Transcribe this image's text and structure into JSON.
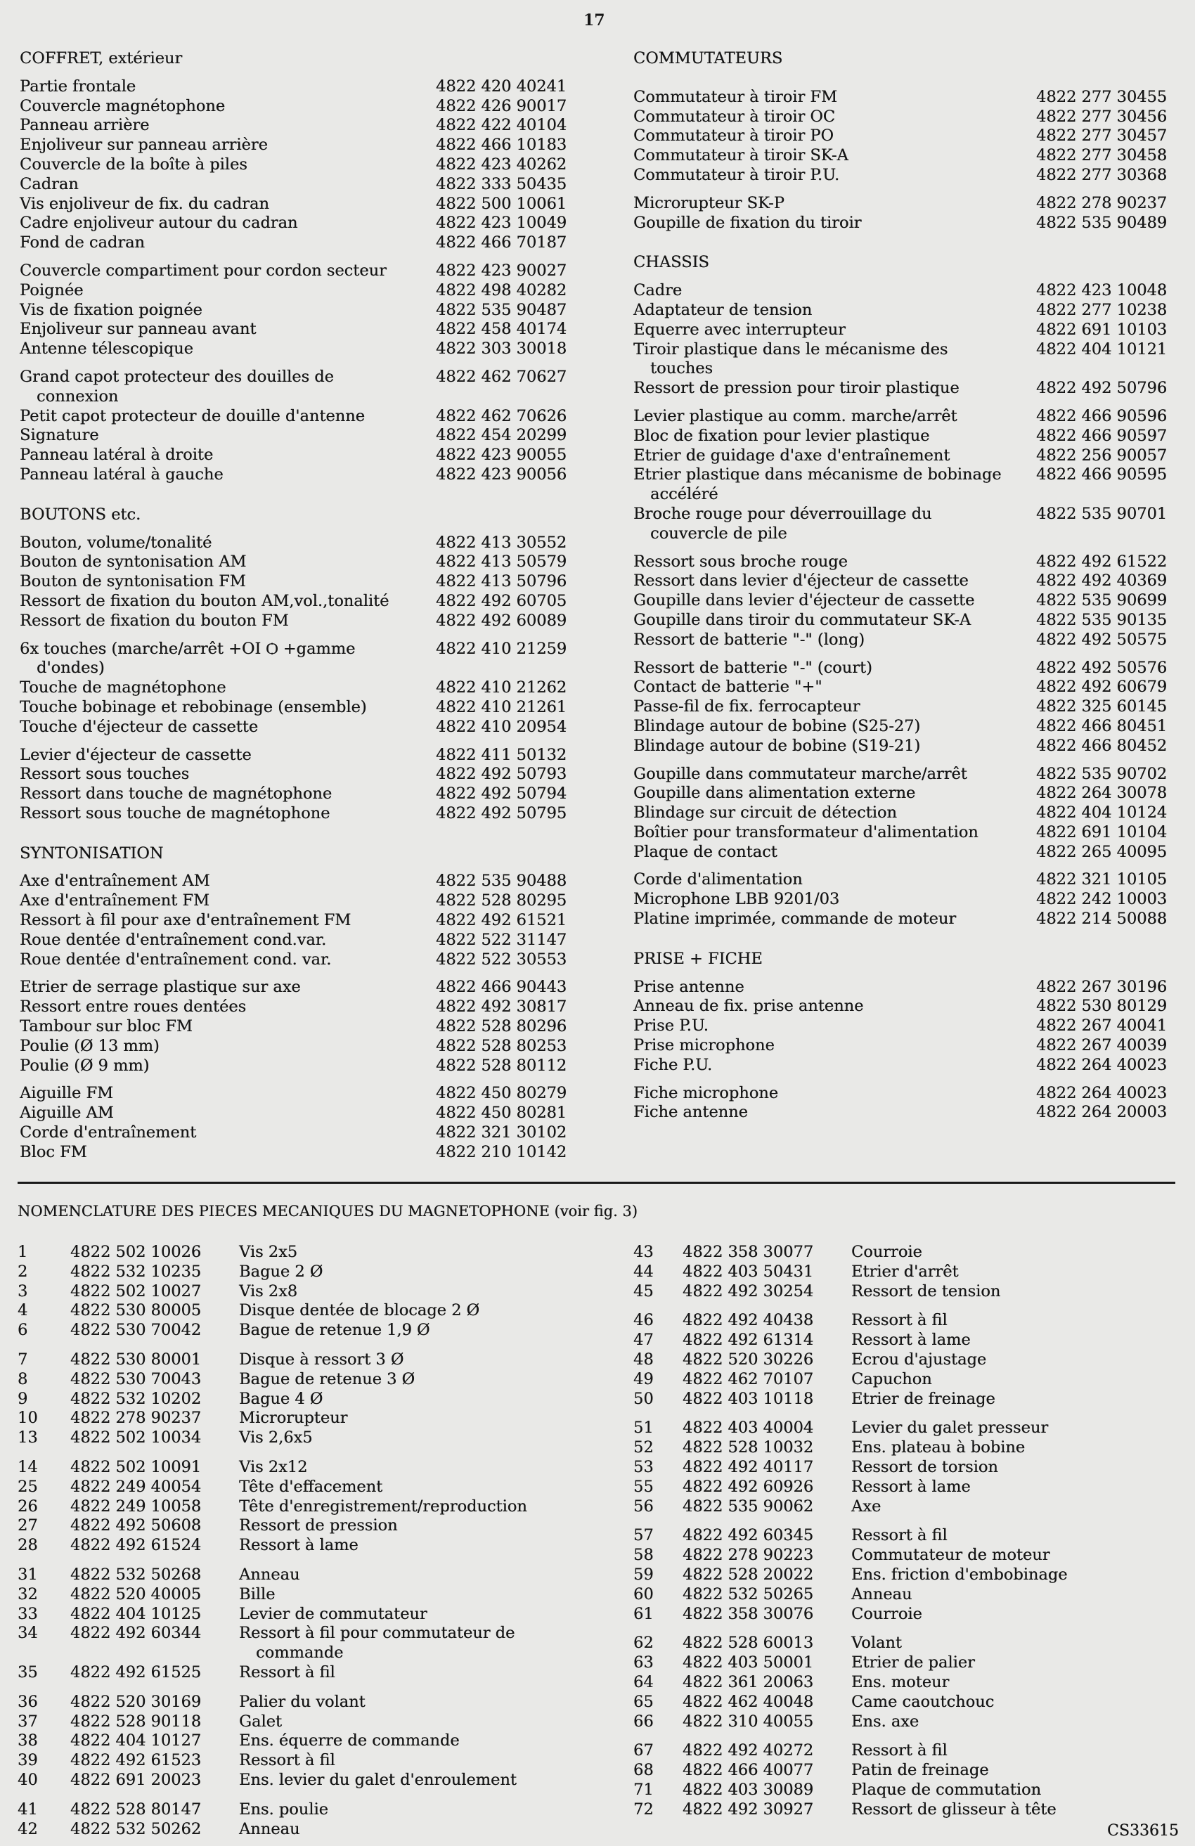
{
  "page_number": "17",
  "parts_lists": {
    "left": [
      {
        "title": "COFFRET, extérieur",
        "groups": [
          {
            "items": [
              {
                "desc": "Partie frontale",
                "part": "4822 420 40241"
              },
              {
                "desc": "Couvercle magnétophone",
                "part": "4822 426 90017"
              },
              {
                "desc": "Panneau arrière",
                "part": "4822 422 40104"
              },
              {
                "desc": "Enjoliveur sur panneau arrière",
                "part": "4822 466 10183"
              },
              {
                "desc": "Couvercle de la boîte à piles",
                "part": "4822 423 40262"
              },
              {
                "desc": "Cadran",
                "part": "4822 333 50435"
              },
              {
                "desc": "Vis enjoliveur de fix. du cadran",
                "part": "4822 500 10061"
              },
              {
                "desc": "Cadre enjoliveur autour du cadran",
                "part": "4822 423 10049"
              },
              {
                "desc": "Fond de cadran",
                "part": "4822 466 70187"
              }
            ]
          },
          {
            "items": [
              {
                "desc": "Couvercle compartiment pour cordon secteur",
                "part": "4822 423 90027"
              },
              {
                "desc": "Poignée",
                "part": "4822 498 40282"
              },
              {
                "desc": "Vis de fixation poignée",
                "part": "4822 535 90487"
              },
              {
                "desc": "Enjoliveur sur panneau avant",
                "part": "4822 458 40174"
              },
              {
                "desc": "Antenne télescopique",
                "part": "4822 303 30018"
              }
            ]
          },
          {
            "items": [
              {
                "desc": "Grand capot protecteur des douilles de\nconnexion",
                "part": "4822 462 70627"
              },
              {
                "desc": "Petit capot protecteur de douille d'antenne",
                "part": "4822 462 70626"
              },
              {
                "desc": "Signature",
                "part": "4822 454 20299"
              },
              {
                "desc": "Panneau latéral à droite",
                "part": "4822 423 90055"
              },
              {
                "desc": "Panneau latéral à gauche",
                "part": "4822 423 90056"
              }
            ]
          }
        ]
      },
      {
        "title": "BOUTONS etc.",
        "groups": [
          {
            "items": [
              {
                "desc": "Bouton, volume/tonalité",
                "part": "4822 413 30552"
              },
              {
                "desc": "Bouton de syntonisation AM",
                "part": "4822 413 50579"
              },
              {
                "desc": "Bouton de syntonisation FM",
                "part": "4822 413 50796"
              },
              {
                "desc": "Ressort de fixation du bouton AM,vol.,tonalité",
                "part": "4822 492 60705"
              },
              {
                "desc": "Ressort de fixation du bouton FM",
                "part": "4822 492 60089"
              }
            ]
          },
          {
            "items": [
              {
                "desc": "6x touches (marche/arrêt +OI Ѻ +gamme\nd'ondes)",
                "part": "4822 410 21259"
              },
              {
                "desc": "Touche de magnétophone",
                "part": "4822 410 21262"
              },
              {
                "desc": "Touche bobinage et rebobinage (ensemble)",
                "part": "4822 410 21261"
              },
              {
                "desc": "Touche d'éjecteur de cassette",
                "part": "4822 410 20954"
              }
            ]
          },
          {
            "items": [
              {
                "desc": "Levier d'éjecteur de cassette",
                "part": "4822 411 50132"
              },
              {
                "desc": "Ressort sous touches",
                "part": "4822 492 50793"
              },
              {
                "desc": "Ressort dans touche de magnétophone",
                "part": "4822 492 50794"
              },
              {
                "desc": "Ressort sous touche de magnétophone",
                "part": "4822 492 50795"
              }
            ]
          }
        ]
      },
      {
        "title": "SYNTONISATION",
        "groups": [
          {
            "items": [
              {
                "desc": "Axe d'entraînement AM",
                "part": "4822 535 90488"
              },
              {
                "desc": "Axe d'entraînement FM",
                "part": "4822 528 80295"
              },
              {
                "desc": "Ressort à fil pour axe d'entraînement FM",
                "part": "4822 492 61521"
              },
              {
                "desc": "Roue dentée d'entraînement cond.var.",
                "part": "4822 522 31147"
              },
              {
                "desc": "Roue dentée d'entraînement cond. var.",
                "part": "4822 522 30553"
              }
            ]
          },
          {
            "items": [
              {
                "desc": "Etrier de serrage plastique sur axe",
                "part": "4822 466 90443"
              },
              {
                "desc": "Ressort entre roues dentées",
                "part": "4822 492 30817"
              },
              {
                "desc": "Tambour sur bloc FM",
                "part": "4822 528 80296"
              },
              {
                "desc": "Poulie (Ø 13 mm)",
                "part": "4822 528 80253"
              },
              {
                "desc": "Poulie (Ø  9 mm)",
                "part": "4822 528 80112"
              }
            ]
          },
          {
            "items": [
              {
                "desc": "Aiguille FM",
                "part": "4822 450 80279"
              },
              {
                "desc": "Aiguille AM",
                "part": "4822 450 80281"
              },
              {
                "desc": "Corde d'entraînement",
                "part": "4822 321 30102"
              },
              {
                "desc": "Bloc FM",
                "part": "4822 210 10142"
              }
            ]
          }
        ]
      }
    ],
    "right": [
      {
        "title": "COMMUTATEURS",
        "groups": [
          {
            "items": [
              {
                "desc": "Commutateur à tiroir FM",
                "part": "4822 277 30455"
              },
              {
                "desc": "Commutateur à tiroir OC",
                "part": "4822 277 30456"
              },
              {
                "desc": "Commutateur à tiroir PO",
                "part": "4822 277 30457"
              },
              {
                "desc": "Commutateur à tiroir SK-A",
                "part": "4822 277 30458"
              },
              {
                "desc": "Commutateur à tiroir P.U.",
                "part": "4822 277 30368"
              }
            ]
          },
          {
            "items": [
              {
                "desc": "Microrupteur SK-P",
                "part": "4822 278 90237"
              },
              {
                "desc": "Goupille de fixation du tiroir",
                "part": "4822 535 90489"
              }
            ]
          }
        ]
      },
      {
        "title": "CHASSIS",
        "groups": [
          {
            "items": [
              {
                "desc": "Cadre",
                "part": "4822 423 10048"
              },
              {
                "desc": "Adaptateur de tension",
                "part": "4822 277 10238"
              },
              {
                "desc": "Equerre avec interrupteur",
                "part": "4822 691 10103"
              },
              {
                "desc": "Tiroir plastique dans le mécanisme des\ntouches",
                "part": "4822 404 10121"
              },
              {
                "desc": "Ressort de pression pour tiroir plastique",
                "part": "4822 492 50796"
              }
            ]
          },
          {
            "items": [
              {
                "desc": "Levier plastique au comm. marche/arrêt",
                "part": "4822 466 90596"
              },
              {
                "desc": "Bloc de fixation pour levier plastique",
                "part": "4822 466 90597"
              },
              {
                "desc": "Etrier de guidage d'axe d'entraînement",
                "part": "4822 256 90057"
              },
              {
                "desc": "Etrier plastique dans mécanisme de bobinage\naccéléré",
                "part": "4822 466 90595"
              },
              {
                "desc": "Broche rouge pour déverrouillage du\ncouvercle de pile",
                "part": "4822 535 90701"
              }
            ]
          },
          {
            "items": [
              {
                "desc": "Ressort sous broche rouge",
                "part": "4822 492 61522"
              },
              {
                "desc": "Ressort dans levier d'éjecteur de cassette",
                "part": "4822 492 40369"
              },
              {
                "desc": "Goupille dans levier d'éjecteur de cassette",
                "part": "4822 535 90699"
              },
              {
                "desc": "Goupille dans tiroir du commutateur SK-A",
                "part": "4822 535 90135"
              },
              {
                "desc": "Ressort de batterie \"-\" (long)",
                "part": "4822 492 50575"
              }
            ]
          },
          {
            "items": [
              {
                "desc": "Ressort de batterie \"-\" (court)",
                "part": "4822 492 50576"
              },
              {
                "desc": "Contact de batterie \"+\"",
                "part": "4822 492 60679"
              },
              {
                "desc": "Passe-fil de fix. ferrocapteur",
                "part": "4822 325 60145"
              },
              {
                "desc": "Blindage autour de bobine (S25-27)",
                "part": "4822 466 80451"
              },
              {
                "desc": "Blindage autour de bobine (S19-21)",
                "part": "4822 466 80452"
              }
            ]
          },
          {
            "items": [
              {
                "desc": "Goupille dans commutateur marche/arrêt",
                "part": "4822 535 90702"
              },
              {
                "desc": "Goupille dans alimentation externe",
                "part": "4822 264 30078"
              },
              {
                "desc": "Blindage sur circuit de détection",
                "part": "4822 404 10124"
              },
              {
                "desc": "Boîtier pour transformateur d'alimentation",
                "part": "4822 691 10104"
              },
              {
                "desc": "Plaque de contact",
                "part": "4822 265 40095"
              }
            ]
          },
          {
            "items": [
              {
                "desc": "Corde d'alimentation",
                "part": "4822 321 10105"
              },
              {
                "desc": "Microphone LBB 9201/03",
                "part": "4822 242 10003"
              },
              {
                "desc": "Platine imprimée, commande de moteur",
                "part": "4822 214 50088"
              }
            ]
          }
        ]
      },
      {
        "title": "PRISE + FICHE",
        "groups": [
          {
            "items": [
              {
                "desc": "Prise antenne",
                "part": "4822 267 30196"
              },
              {
                "desc": "Anneau de fix. prise antenne",
                "part": "4822 530 80129"
              },
              {
                "desc": "Prise P.U.",
                "part": "4822 267 40041"
              },
              {
                "desc": "Prise microphone",
                "part": "4822 267 40039"
              },
              {
                "desc": "Fiche P.U.",
                "part": "4822 264 40023"
              }
            ]
          },
          {
            "items": [
              {
                "desc": "Fiche microphone",
                "part": "4822 264 40023"
              },
              {
                "desc": "Fiche antenne",
                "part": "4822 264 20003"
              }
            ]
          }
        ]
      }
    ]
  },
  "nomenclature": {
    "title": "NOMENCLATURE DES PIECES MECANIQUES DU MAGNETOPHONE (voir fig. 3)",
    "left": [
      [
        [
          "1",
          "4822 502 10026",
          "Vis 2x5"
        ],
        [
          "2",
          "4822 532 10235",
          "Bague 2 Ø"
        ],
        [
          "3",
          "4822 502 10027",
          "Vis 2x8"
        ],
        [
          "4",
          "4822 530 80005",
          "Disque dentée de blocage 2 Ø"
        ],
        [
          "6",
          "4822 530 70042",
          "Bague de retenue 1,9 Ø"
        ]
      ],
      [
        [
          "7",
          "4822 530 80001",
          "Disque à ressort 3 Ø"
        ],
        [
          "8",
          "4822 530 70043",
          "Bague de retenue 3 Ø"
        ],
        [
          "9",
          "4822 532 10202",
          "Bague 4 Ø"
        ],
        [
          "10",
          "4822 278 90237",
          "Microrupteur"
        ],
        [
          "13",
          "4822 502 10034",
          "Vis 2,6x5"
        ]
      ],
      [
        [
          "14",
          "4822 502 10091",
          "Vis 2x12"
        ],
        [
          "25",
          "4822 249 40054",
          "Tête d'effacement"
        ],
        [
          "26",
          "4822 249 10058",
          "Tête d'enregistrement/reproduction"
        ],
        [
          "27",
          "4822 492 50608",
          "Ressort de pression"
        ],
        [
          "28",
          "4822 492 61524",
          "Ressort à lame"
        ]
      ],
      [
        [
          "31",
          "4822 532 50268",
          "Anneau"
        ],
        [
          "32",
          "4822 520 40005",
          "Bille"
        ],
        [
          "33",
          "4822 404 10125",
          "Levier de commutateur"
        ],
        [
          "34",
          "4822 492 60344",
          "Ressort à fil pour commutateur de\ncommande"
        ],
        [
          "35",
          "4822 492 61525",
          "Ressort à fil"
        ]
      ],
      [
        [
          "36",
          "4822 520 30169",
          "Palier du volant"
        ],
        [
          "37",
          "4822 528 90118",
          "Galet"
        ],
        [
          "38",
          "4822 404 10127",
          "Ens. équerre de commande"
        ],
        [
          "39",
          "4822 492 61523",
          "Ressort à fil"
        ],
        [
          "40",
          "4822 691 20023",
          "Ens. levier du galet d'enroulement"
        ]
      ],
      [
        [
          "41",
          "4822 528 80147",
          "Ens. poulie"
        ],
        [
          "42",
          "4822 532 50262",
          "Anneau"
        ]
      ]
    ],
    "right": [
      [
        [
          "43",
          "4822 358 30077",
          "Courroie"
        ],
        [
          "44",
          "4822 403 50431",
          "Etrier d'arrêt"
        ],
        [
          "45",
          "4822 492 30254",
          "Ressort de tension"
        ]
      ],
      [
        [
          "46",
          "4822 492 40438",
          "Ressort à fil"
        ],
        [
          "47",
          "4822 492 61314",
          "Ressort à lame"
        ],
        [
          "48",
          "4822 520 30226",
          "Ecrou d'ajustage"
        ],
        [
          "49",
          "4822 462 70107",
          "Capuchon"
        ],
        [
          "50",
          "4822 403 10118",
          "Etrier de freinage"
        ]
      ],
      [
        [
          "51",
          "4822 403 40004",
          "Levier du galet presseur"
        ],
        [
          "52",
          "4822 528 10032",
          "Ens. plateau à bobine"
        ],
        [
          "53",
          "4822 492 40117",
          "Ressort de torsion"
        ],
        [
          "55",
          "4822 492 60926",
          "Ressort à lame"
        ],
        [
          "56",
          "4822 535 90062",
          "Axe"
        ]
      ],
      [
        [
          "57",
          "4822 492 60345",
          "Ressort à fil"
        ],
        [
          "58",
          "4822 278 90223",
          "Commutateur de moteur"
        ],
        [
          "59",
          "4822 528 20022",
          "Ens. friction d'embobinage"
        ],
        [
          "60",
          "4822 532 50265",
          "Anneau"
        ],
        [
          "61",
          "4822 358 30076",
          "Courroie"
        ]
      ],
      [
        [
          "62",
          "4822 528 60013",
          "Volant"
        ],
        [
          "63",
          "4822 403 50001",
          "Etrier de palier"
        ],
        [
          "64",
          "4822 361 20063",
          "Ens. moteur"
        ],
        [
          "65",
          "4822 462 40048",
          "Came caoutchouc"
        ],
        [
          "66",
          "4822 310 40055",
          "Ens. axe"
        ]
      ],
      [
        [
          "67",
          "4822 492 40272",
          "Ressort à fil"
        ],
        [
          "68",
          "4822 466 40077",
          "Patin de freinage"
        ],
        [
          "71",
          "4822 403 30089",
          "Plaque de commutation"
        ],
        [
          "72",
          "4822 492 30927",
          "Ressort de glisseur à tête"
        ]
      ]
    ]
  },
  "document_code": "CS33615"
}
